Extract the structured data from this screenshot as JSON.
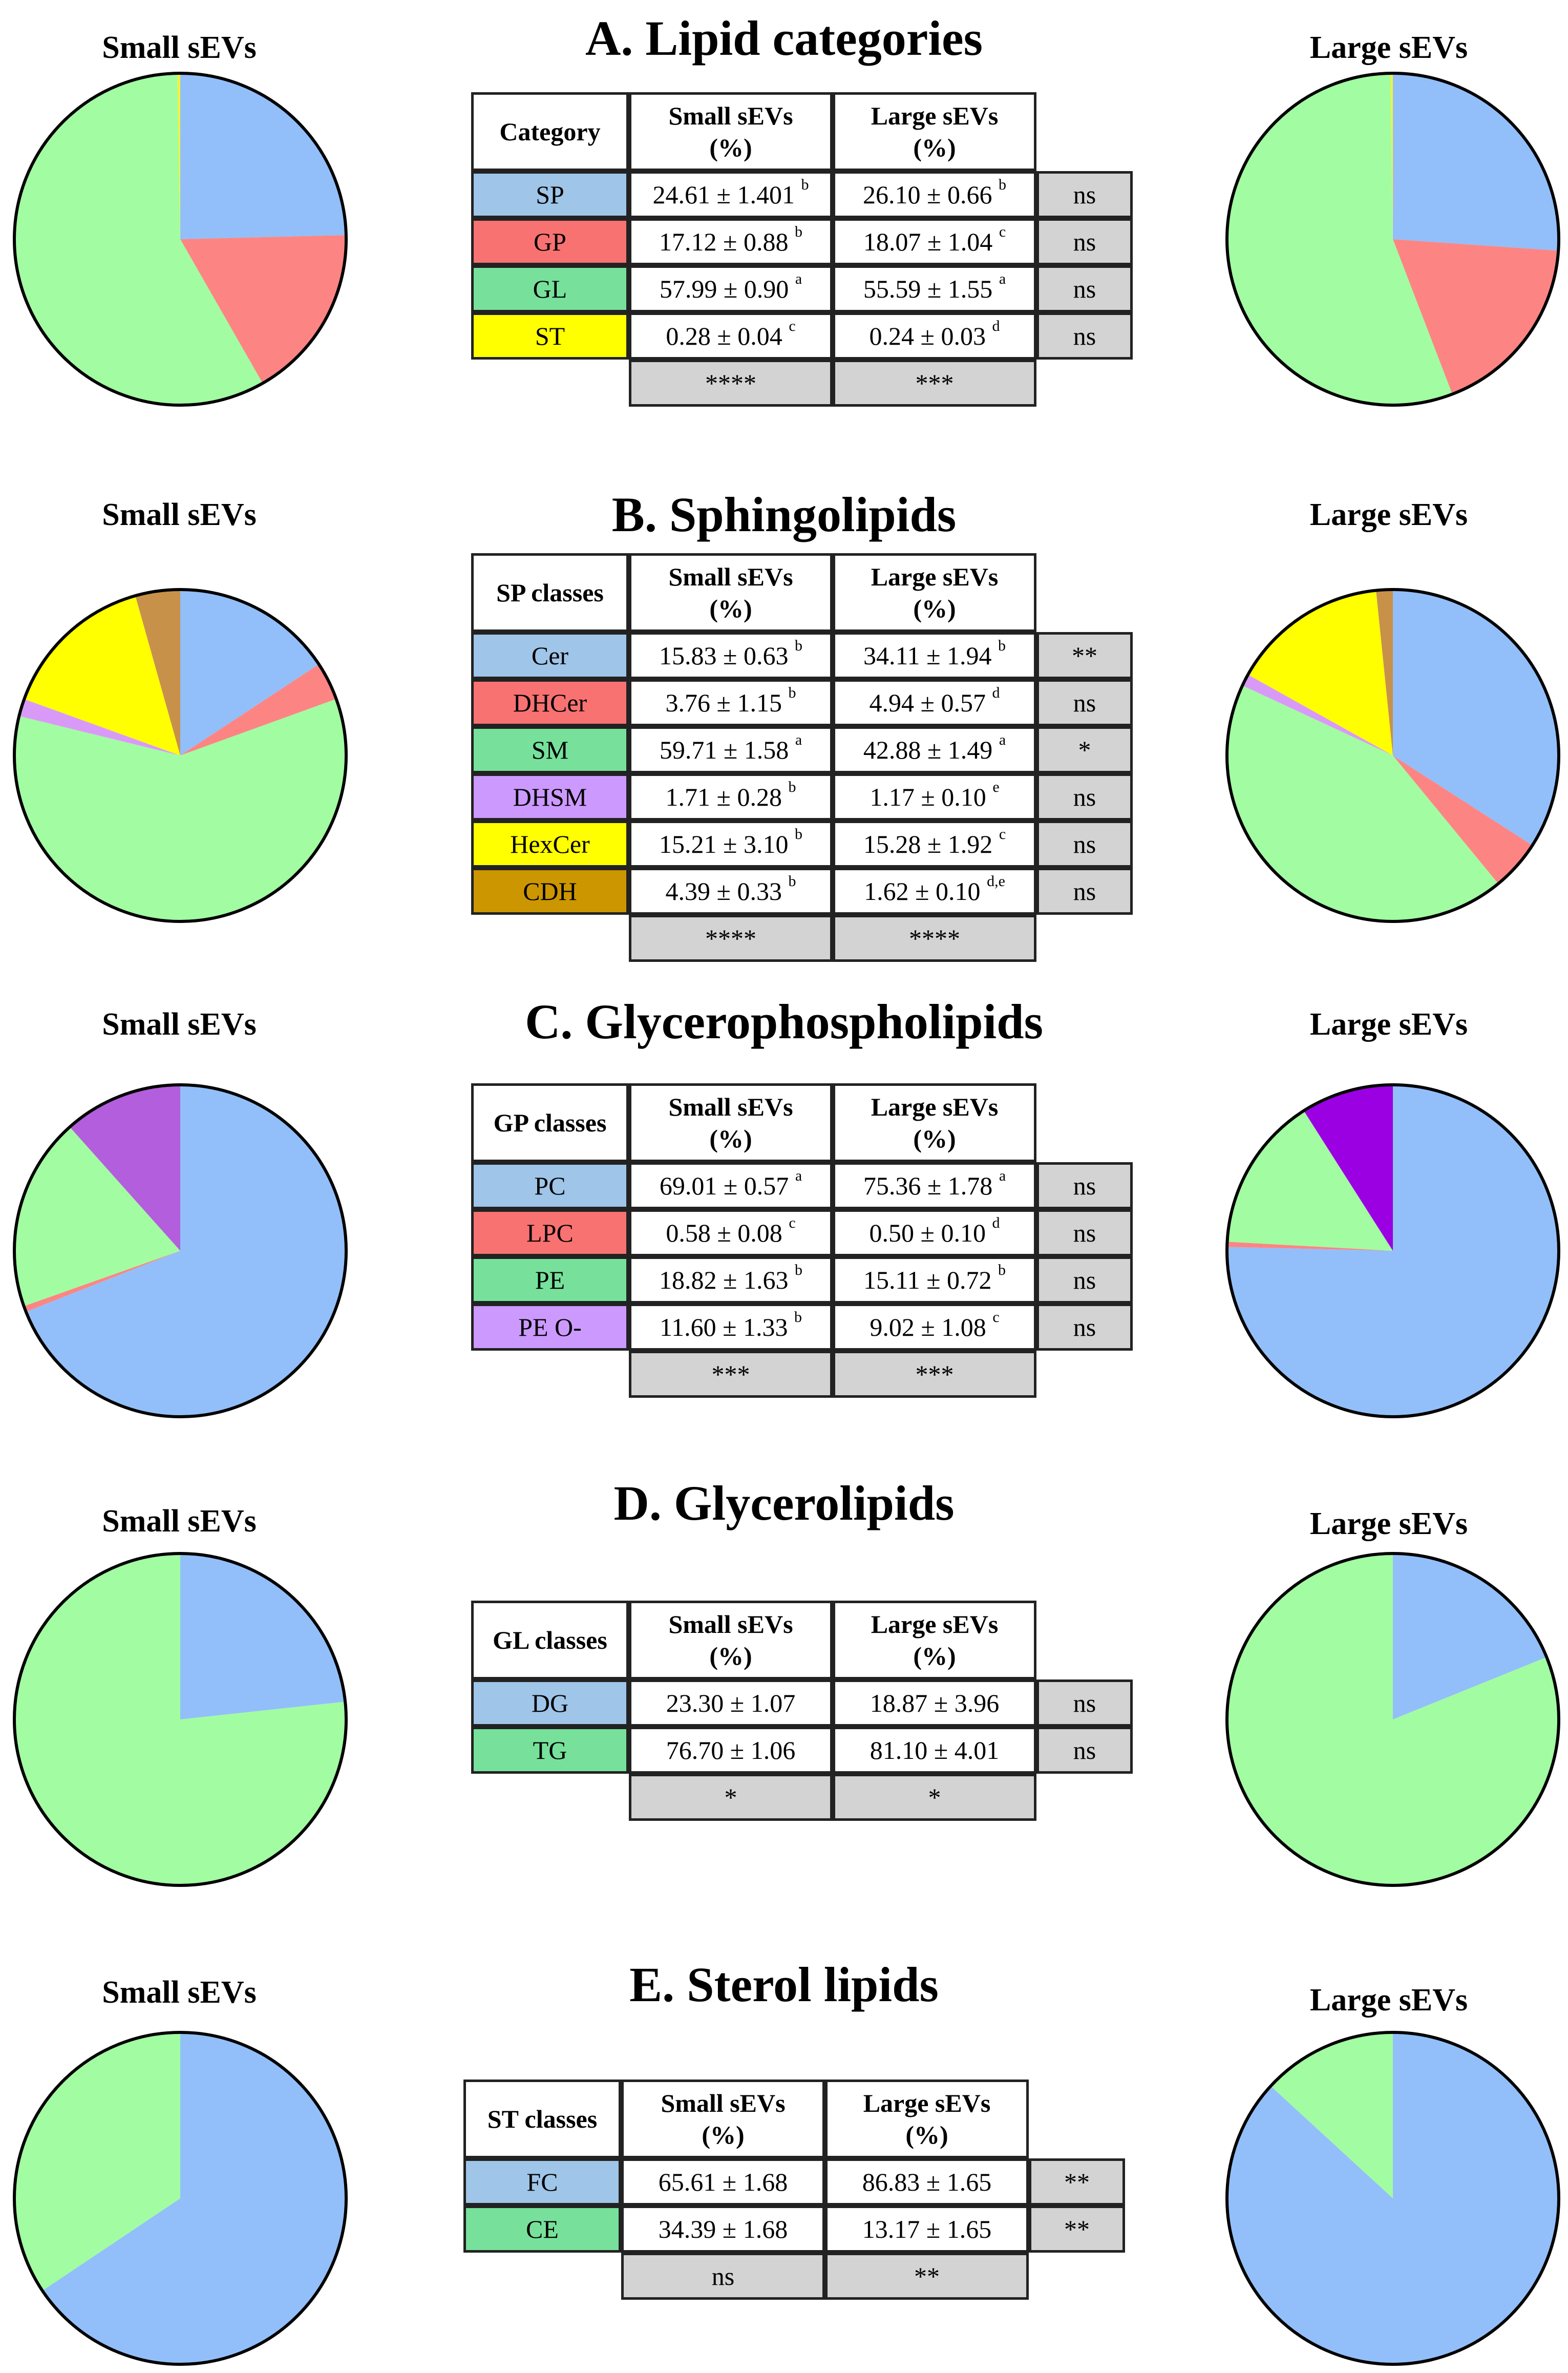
{
  "panels": [
    {
      "title": "A. Lipid categories",
      "small_label": "Small sEVs",
      "large_label": "Large sEVs",
      "header": {
        "first": "Category",
        "small": "Small sEVs",
        "large": "Large sEVs",
        "unit": "(%)"
      },
      "rows": [
        {
          "name": "SP",
          "color": "#9fc5e8",
          "small": "24.61 ± 1.401",
          "small_sup": "b",
          "large": "26.10 ± 0.66",
          "large_sup": "b",
          "sig": "ns"
        },
        {
          "name": "GP",
          "color": "#f87272",
          "small": "17.12 ± 0.88",
          "small_sup": "b",
          "large": "18.07 ± 1.04",
          "large_sup": "c",
          "sig": "ns"
        },
        {
          "name": "GL",
          "color": "#77e19b",
          "small": "57.99 ± 0.90",
          "small_sup": "a",
          "large": "55.59 ± 1.55",
          "large_sup": "a",
          "sig": "ns"
        },
        {
          "name": "ST",
          "color": "#ffff00",
          "small": "0.28 ± 0.04",
          "small_sup": "c",
          "large": "0.24 ± 0.03",
          "large_sup": "d",
          "sig": "ns"
        }
      ],
      "footer": {
        "small": "****",
        "large": "***"
      }
    },
    {
      "title": "B. Sphingolipids",
      "small_label": "Small sEVs",
      "large_label": "Large sEVs",
      "header": {
        "first": "SP classes",
        "small": "Small sEVs",
        "large": "Large sEVs",
        "unit": "(%)"
      },
      "rows": [
        {
          "name": "Cer",
          "color": "#9fc5e8",
          "small": "15.83 ± 0.63",
          "small_sup": "b",
          "large": "34.11 ± 1.94",
          "large_sup": "b",
          "sig": "**"
        },
        {
          "name": "DHCer",
          "color": "#f87272",
          "small": "3.76 ± 1.15",
          "small_sup": "b",
          "large": "4.94 ± 0.57",
          "large_sup": "d",
          "sig": "ns"
        },
        {
          "name": "SM",
          "color": "#77e19b",
          "small": "59.71 ± 1.58",
          "small_sup": "a",
          "large": "42.88 ± 1.49",
          "large_sup": "a",
          "sig": "*"
        },
        {
          "name": "DHSM",
          "color": "#cc99ff",
          "small": "1.71 ± 0.28",
          "small_sup": "b",
          "large": "1.17 ± 0.10",
          "large_sup": "e",
          "sig": "ns"
        },
        {
          "name": "HexCer",
          "color": "#ffff00",
          "small": "15.21 ± 3.10",
          "small_sup": "b",
          "large": "15.28 ± 1.92",
          "large_sup": "c",
          "sig": "ns"
        },
        {
          "name": "CDH",
          "color": "#cc9600",
          "small": "4.39 ± 0.33",
          "small_sup": "b",
          "large": "1.62 ± 0.10",
          "large_sup": "d,e",
          "sig": "ns"
        }
      ],
      "footer": {
        "small": "****",
        "large": "****"
      }
    },
    {
      "title": "C. Glycerophospholipids",
      "small_label": "Small sEVs",
      "large_label": "Large sEVs",
      "header": {
        "first": "GP classes",
        "small": "Small sEVs",
        "large": "Large sEVs",
        "unit": "(%)"
      },
      "rows": [
        {
          "name": "PC",
          "color": "#9fc5e8",
          "small": "69.01 ± 0.57",
          "small_sup": "a",
          "large": "75.36 ± 1.78",
          "large_sup": "a",
          "sig": "ns"
        },
        {
          "name": "LPC",
          "color": "#f87272",
          "small": "0.58 ± 0.08",
          "small_sup": "c",
          "large": "0.50 ± 0.10",
          "large_sup": "d",
          "sig": "ns"
        },
        {
          "name": "PE",
          "color": "#77e19b",
          "small": "18.82 ± 1.63",
          "small_sup": "b",
          "large": "15.11 ± 0.72",
          "large_sup": "b",
          "sig": "ns"
        },
        {
          "name": "PE O-",
          "color": "#cc99ff",
          "small": "11.60 ± 1.33",
          "small_sup": "b",
          "large": "9.02 ± 1.08",
          "large_sup": "c",
          "sig": "ns"
        }
      ],
      "footer": {
        "small": "***",
        "large": "***"
      }
    },
    {
      "title": "D. Glycerolipids",
      "small_label": "Small sEVs",
      "large_label": "Large sEVs",
      "header": {
        "first": "GL classes",
        "small": "Small sEVs",
        "large": "Large sEVs",
        "unit": "(%)"
      },
      "rows": [
        {
          "name": "DG",
          "color": "#9fc5e8",
          "small": "23.30 ± 1.07",
          "small_sup": "",
          "large": "18.87 ± 3.96",
          "large_sup": "",
          "sig": "ns"
        },
        {
          "name": "TG",
          "color": "#77e19b",
          "small": "76.70 ± 1.06",
          "small_sup": "",
          "large": "81.10 ± 4.01",
          "large_sup": "",
          "sig": "ns"
        }
      ],
      "footer": {
        "small": "*",
        "large": "*"
      }
    },
    {
      "title": "E. Sterol lipids",
      "small_label": "Small sEVs",
      "large_label": "Large sEVs",
      "header": {
        "first": "ST classes",
        "small": "Small sEVs",
        "large": "Large sEVs",
        "unit": "(%)"
      },
      "rows": [
        {
          "name": "FC",
          "color": "#9fc5e8",
          "small": "65.61 ± 1.68",
          "small_sup": "",
          "large": "86.83 ± 1.65",
          "large_sup": "",
          "sig": "**"
        },
        {
          "name": "CE",
          "color": "#77e19b",
          "small": "34.39 ± 1.68",
          "small_sup": "",
          "large": "13.17 ± 1.65",
          "large_sup": "",
          "sig": "**"
        }
      ],
      "footer": {
        "small": "ns",
        "large": "**"
      }
    }
  ],
  "chart_data": [
    {
      "type": "pie",
      "title": "A. Lipid categories — Small sEVs",
      "categories": [
        "SP",
        "GP",
        "GL",
        "ST"
      ],
      "values": [
        24.61,
        17.12,
        57.99,
        0.28
      ],
      "colors": [
        "#92bff9",
        "#fc8584",
        "#a2fca2",
        "#f2f23a"
      ]
    },
    {
      "type": "pie",
      "title": "A. Lipid categories — Large sEVs",
      "categories": [
        "SP",
        "GP",
        "GL",
        "ST"
      ],
      "values": [
        26.1,
        18.07,
        55.59,
        0.24
      ],
      "colors": [
        "#92bff9",
        "#fc8584",
        "#a2fca2",
        "#f2f23a"
      ]
    },
    {
      "type": "pie",
      "title": "B. Sphingolipids — Small sEVs",
      "categories": [
        "Cer",
        "DHCer",
        "SM",
        "DHSM",
        "HexCer",
        "CDH"
      ],
      "values": [
        15.83,
        3.76,
        59.71,
        1.71,
        15.21,
        4.39
      ],
      "colors": [
        "#92bff9",
        "#fc8584",
        "#a2fca2",
        "#d99af7",
        "#ffff00",
        "#c8914a"
      ]
    },
    {
      "type": "pie",
      "title": "B. Sphingolipids — Large sEVs",
      "categories": [
        "Cer",
        "DHCer",
        "SM",
        "DHSM",
        "HexCer",
        "CDH"
      ],
      "values": [
        34.11,
        4.94,
        42.88,
        1.17,
        15.28,
        1.62
      ],
      "colors": [
        "#92bff9",
        "#fc8584",
        "#a2fca2",
        "#d99af7",
        "#ffff00",
        "#c8914a"
      ]
    },
    {
      "type": "pie",
      "title": "C. Glycerophospholipids — Small sEVs",
      "categories": [
        "PC",
        "LPC",
        "PE",
        "PE O-"
      ],
      "values": [
        69.01,
        0.58,
        18.82,
        11.6
      ],
      "colors": [
        "#92bff9",
        "#fc8584",
        "#a2fca2",
        "#b35edd"
      ]
    },
    {
      "type": "pie",
      "title": "C. Glycerophospholipids — Large sEVs",
      "categories": [
        "PC",
        "LPC",
        "PE",
        "PE O-"
      ],
      "values": [
        75.36,
        0.5,
        15.11,
        9.02
      ],
      "colors": [
        "#92bff9",
        "#fc8584",
        "#a2fca2",
        "#9b00e3"
      ]
    },
    {
      "type": "pie",
      "title": "D. Glycerolipids — Small sEVs",
      "categories": [
        "DG",
        "TG"
      ],
      "values": [
        23.3,
        76.7
      ],
      "colors": [
        "#92bff9",
        "#a2fca2"
      ]
    },
    {
      "type": "pie",
      "title": "D. Glycerolipids — Large sEVs",
      "categories": [
        "DG",
        "TG"
      ],
      "values": [
        18.87,
        81.1
      ],
      "colors": [
        "#92bff9",
        "#a2fca2"
      ]
    },
    {
      "type": "pie",
      "title": "E. Sterol lipids — Small sEVs",
      "categories": [
        "FC",
        "CE"
      ],
      "values": [
        65.61,
        34.39
      ],
      "colors": [
        "#92bff9",
        "#a2fca2"
      ]
    },
    {
      "type": "pie",
      "title": "E. Sterol lipids — Large sEVs",
      "categories": [
        "FC",
        "CE"
      ],
      "values": [
        86.83,
        13.17
      ],
      "colors": [
        "#92bff9",
        "#a2fca2"
      ]
    }
  ]
}
